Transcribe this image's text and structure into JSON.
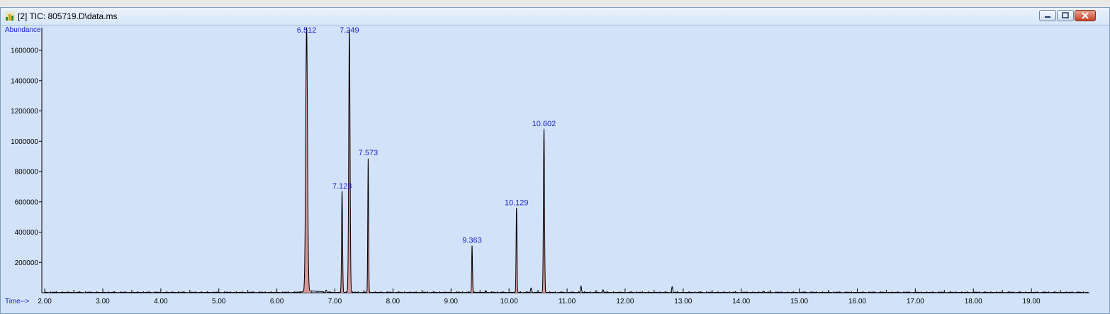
{
  "window": {
    "title": "[2] TIC: 805719.D\\data.ms"
  },
  "colors": {
    "background": "#d2e3f9",
    "trace": "#000000",
    "integration_fill": "#d98a8a",
    "label": "#1a22c8"
  },
  "chart_data": {
    "type": "line",
    "ylabel": "Abundance",
    "xlabel": "Time-->",
    "xlim": [
      1.95,
      20.0
    ],
    "ylim": [
      0,
      1750000
    ],
    "x_ticks": [
      2.0,
      3.0,
      4.0,
      5.0,
      6.0,
      7.0,
      8.0,
      9.0,
      10.0,
      11.0,
      12.0,
      13.0,
      14.0,
      15.0,
      16.0,
      17.0,
      18.0,
      19.0
    ],
    "x_tick_labels": [
      "2.00",
      "3.00",
      "4.00",
      "5.00",
      "6.00",
      "7.00",
      "8.00",
      "9.00",
      "10.00",
      "11.00",
      "12.00",
      "13.00",
      "14.00",
      "15.00",
      "16.00",
      "17.00",
      "18.00",
      "19.00"
    ],
    "y_ticks": [
      200000,
      400000,
      600000,
      800000,
      1000000,
      1200000,
      1400000,
      1600000
    ],
    "y_tick_labels": [
      "200000",
      "400000",
      "600000",
      "800000",
      "1000000",
      "1200000",
      "1400000",
      "1600000"
    ],
    "grid": false,
    "peaks": [
      {
        "rt": 6.512,
        "label": "6.512",
        "height": 1740000,
        "width": 0.022,
        "integrated": true
      },
      {
        "rt": 7.123,
        "label": "7.123",
        "height": 670000,
        "width": 0.012,
        "integrated": true
      },
      {
        "rt": 7.249,
        "label": "7.249",
        "height": 1740000,
        "width": 0.016,
        "integrated": true
      },
      {
        "rt": 7.573,
        "label": "7.573",
        "height": 890000,
        "width": 0.01,
        "integrated": true
      },
      {
        "rt": 9.363,
        "label": "9.363",
        "height": 310000,
        "width": 0.01,
        "integrated": true
      },
      {
        "rt": 10.129,
        "label": "10.129",
        "height": 560000,
        "width": 0.01,
        "integrated": true
      },
      {
        "rt": 10.602,
        "label": "10.602",
        "height": 1080000,
        "width": 0.013,
        "integrated": true
      }
    ],
    "minor_peaks": [
      {
        "rt": 6.85,
        "height": 15000
      },
      {
        "rt": 9.6,
        "height": 12000
      },
      {
        "rt": 10.38,
        "height": 30000
      },
      {
        "rt": 11.24,
        "height": 42000
      },
      {
        "rt": 11.62,
        "height": 18000
      },
      {
        "rt": 12.81,
        "height": 38000
      },
      {
        "rt": 14.38,
        "height": 8000
      }
    ]
  }
}
